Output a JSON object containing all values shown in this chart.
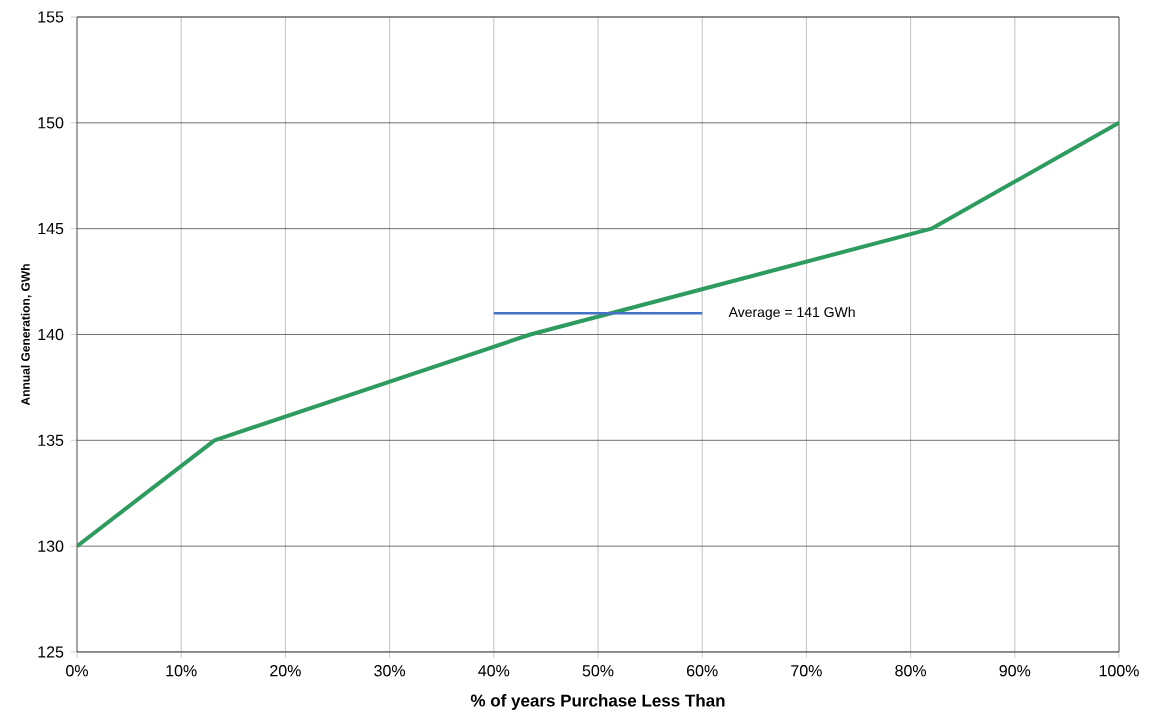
{
  "chart_data": {
    "type": "line",
    "xlabel": "% of years Purchase Less Than",
    "ylabel": "Annual Generation, GWh",
    "xlim": [
      0,
      100
    ],
    "ylim": [
      125,
      155
    ],
    "xticks": [
      {
        "value": 0,
        "label": "0%"
      },
      {
        "value": 10,
        "label": "10%"
      },
      {
        "value": 20,
        "label": "20%"
      },
      {
        "value": 30,
        "label": "30%"
      },
      {
        "value": 40,
        "label": "40%"
      },
      {
        "value": 50,
        "label": "50%"
      },
      {
        "value": 60,
        "label": "60%"
      },
      {
        "value": 70,
        "label": "70%"
      },
      {
        "value": 80,
        "label": "80%"
      },
      {
        "value": 90,
        "label": "90%"
      },
      {
        "value": 100,
        "label": "100%"
      }
    ],
    "yticks": [
      125,
      130,
      135,
      140,
      145,
      150,
      155
    ],
    "grid": true,
    "series": [
      {
        "color": "#2e9b5f",
        "x": [
          0,
          13.2,
          43.5,
          82,
          100
        ],
        "values": [
          130,
          135,
          140,
          145,
          150
        ]
      },
      {
        "color": "#4472c4",
        "x": [
          40,
          60
        ],
        "values": [
          141,
          141
        ]
      }
    ],
    "annotations": [
      "Average = 141 GWh"
    ]
  }
}
